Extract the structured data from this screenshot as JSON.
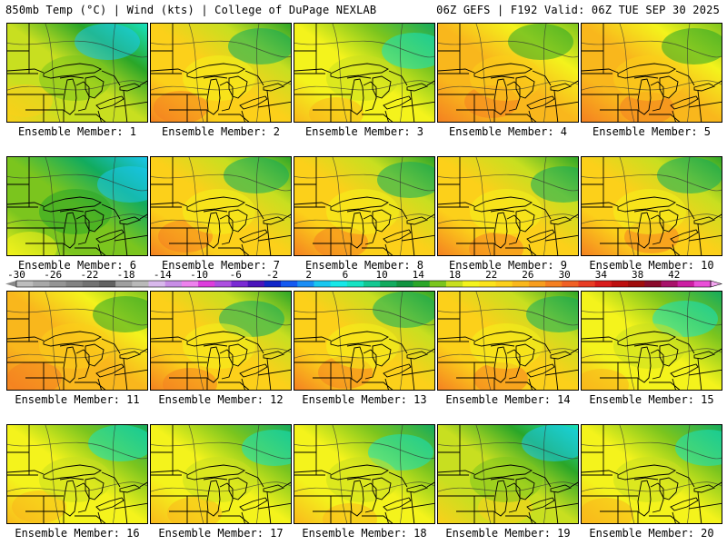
{
  "header": {
    "left": "850mb Temp (°C) | Wind (kts) | College of DuPage NEXLAB",
    "right": "06Z GEFS | F192 Valid: 06Z TUE SEP 30 2025"
  },
  "colorbar": {
    "min": -30,
    "max": 46,
    "step": 2,
    "tick_labels": [
      "-30",
      "-26",
      "-22",
      "-18",
      "-14",
      "-10",
      "-6",
      "-2",
      "2",
      "6",
      "10",
      "14",
      "18",
      "22",
      "26",
      "30",
      "34",
      "38",
      "42"
    ],
    "colors": [
      "#bdbdbd",
      "#a8a8a8",
      "#959595",
      "#838383",
      "#727272",
      "#626262",
      "#9f9f9f",
      "#b9b9b9",
      "#d8b8ec",
      "#c88ee6",
      "#ee82ee",
      "#dd3ddd",
      "#ad4fe0",
      "#7a2ad4",
      "#4b14bb",
      "#1226c8",
      "#1559f0",
      "#1a8ef5",
      "#19c7f0",
      "#16e8e8",
      "#16e3c3",
      "#14c892",
      "#12ab5e",
      "#119440",
      "#2aa628",
      "#7bc51e",
      "#c8df20",
      "#f4f31c",
      "#fce31a",
      "#fcd01a",
      "#f9b71c",
      "#f79d1e",
      "#f47f21",
      "#f06024",
      "#e83c24",
      "#d91b1b",
      "#bd0f0f",
      "#a00d0d",
      "#8a0b2c",
      "#a8136a",
      "#cc1fa3",
      "#ea4fd8"
    ]
  },
  "panels": [
    {
      "label": "Ensemble Member: 1",
      "tint": -2
    },
    {
      "label": "Ensemble Member: 2",
      "tint": 0
    },
    {
      "label": "Ensemble Member: 3",
      "tint": -1
    },
    {
      "label": "Ensemble Member: 4",
      "tint": 1
    },
    {
      "label": "Ensemble Member: 5",
      "tint": 1
    },
    {
      "label": "Ensemble Member: 6",
      "tint": -3
    },
    {
      "label": "Ensemble Member: 7",
      "tint": 0
    },
    {
      "label": "Ensemble Member: 8",
      "tint": 0
    },
    {
      "label": "Ensemble Member: 9",
      "tint": 0
    },
    {
      "label": "Ensemble Member: 10",
      "tint": 0
    },
    {
      "label": "Ensemble Member: 11",
      "tint": 1
    },
    {
      "label": "Ensemble Member: 12",
      "tint": 0
    },
    {
      "label": "Ensemble Member: 13",
      "tint": 0
    },
    {
      "label": "Ensemble Member: 14",
      "tint": 0
    },
    {
      "label": "Ensemble Member: 15",
      "tint": -1
    },
    {
      "label": "Ensemble Member: 16",
      "tint": -1
    },
    {
      "label": "Ensemble Member: 17",
      "tint": -1
    },
    {
      "label": "Ensemble Member: 18",
      "tint": -1
    },
    {
      "label": "Ensemble Member: 19",
      "tint": -2
    },
    {
      "label": "Ensemble Member: 20",
      "tint": -1
    }
  ]
}
